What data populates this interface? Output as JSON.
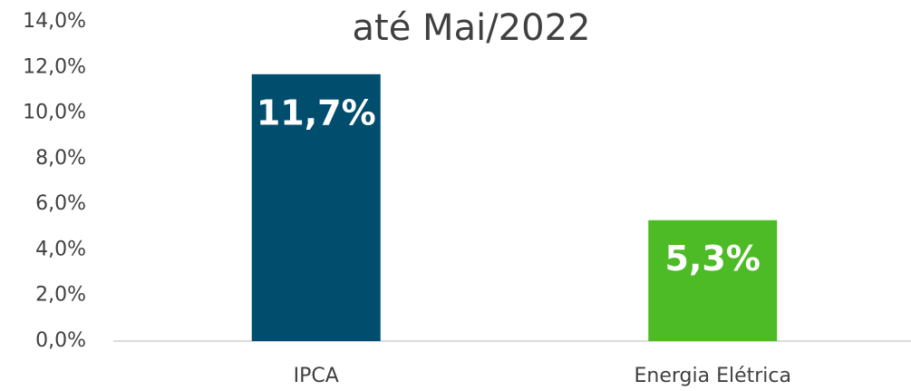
{
  "chart_data": {
    "type": "bar",
    "title": "até Mai/2022",
    "categories": [
      "IPCA",
      "Energia Elétrica"
    ],
    "values": [
      11.7,
      5.3
    ],
    "value_labels": [
      "11,7%",
      "5,3%"
    ],
    "colors": [
      "#004d6e",
      "#4cbb26"
    ],
    "ylim": [
      0,
      14
    ],
    "yticks": [
      {
        "value": 0,
        "label": "0,0%"
      },
      {
        "value": 2,
        "label": "2,0%"
      },
      {
        "value": 4,
        "label": "4,0%"
      },
      {
        "value": 6,
        "label": "6,0%"
      },
      {
        "value": 8,
        "label": "8,0%"
      },
      {
        "value": 10,
        "label": "10,0%"
      },
      {
        "value": 12,
        "label": "12,0%"
      },
      {
        "value": 14,
        "label": "14,0%"
      }
    ],
    "grid": false
  }
}
